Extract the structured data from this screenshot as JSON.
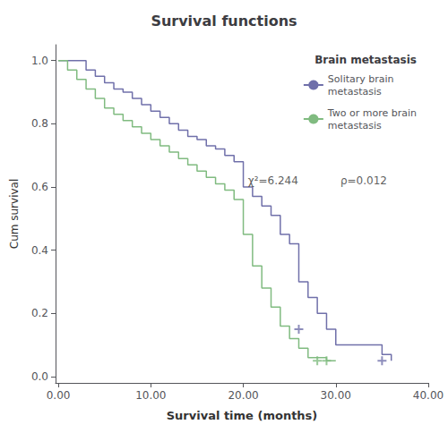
{
  "chart_data": {
    "type": "line",
    "line_style": "step",
    "title": "Survival functions",
    "xlabel": "Survival time (months)",
    "ylabel": "Cum survival",
    "legend_title": "Brain metastasis",
    "legend": "upper right",
    "grid": false,
    "xlim": [
      -0.3,
      40
    ],
    "ylim": [
      -0.02,
      1.05
    ],
    "xticks": [
      {
        "value": 0.0,
        "label": "0.00"
      },
      {
        "value": 10.0,
        "label": "10.00"
      },
      {
        "value": 20.0,
        "label": "20.00"
      },
      {
        "value": 30.0,
        "label": "30.00"
      },
      {
        "value": 40.0,
        "label": "40.00"
      }
    ],
    "yticks": [
      {
        "value": 0.0,
        "label": "0.0"
      },
      {
        "value": 0.2,
        "label": "0.2"
      },
      {
        "value": 0.4,
        "label": "0.4"
      },
      {
        "value": 0.6,
        "label": "0.6"
      },
      {
        "value": 0.8,
        "label": "0.8"
      },
      {
        "value": 1.0,
        "label": "1.0"
      }
    ],
    "series": [
      {
        "name": "Solitary brain\nmetastasis",
        "color": "#7070aa",
        "x": [
          0,
          2,
          3,
          4,
          5,
          6,
          7,
          8,
          9,
          10,
          11,
          12,
          13,
          14,
          15,
          16,
          17,
          18,
          19,
          20,
          21,
          22,
          23,
          24,
          25,
          26,
          27,
          28,
          29,
          30,
          35,
          36
        ],
        "values": [
          1.0,
          1.0,
          0.97,
          0.95,
          0.93,
          0.91,
          0.9,
          0.88,
          0.86,
          0.84,
          0.82,
          0.8,
          0.78,
          0.76,
          0.75,
          0.73,
          0.72,
          0.7,
          0.68,
          0.6,
          0.57,
          0.54,
          0.51,
          0.45,
          0.42,
          0.3,
          0.25,
          0.2,
          0.15,
          0.1,
          0.07,
          0.05
        ]
      },
      {
        "name": "Two or more brain\nmetastasis",
        "color": "#80bb80",
        "x": [
          0,
          1,
          2,
          3,
          4,
          5,
          6,
          7,
          8,
          9,
          10,
          11,
          12,
          13,
          14,
          15,
          16,
          17,
          18,
          19,
          20,
          21,
          22,
          23,
          24,
          25,
          26,
          27,
          28,
          29,
          30
        ],
        "values": [
          1.0,
          0.97,
          0.94,
          0.91,
          0.88,
          0.85,
          0.83,
          0.81,
          0.79,
          0.77,
          0.75,
          0.73,
          0.71,
          0.69,
          0.67,
          0.65,
          0.63,
          0.61,
          0.59,
          0.56,
          0.45,
          0.35,
          0.28,
          0.22,
          0.16,
          0.12,
          0.09,
          0.06,
          0.06,
          0.05,
          0.05
        ]
      },
      {
        "type": "scatter",
        "marker": "+",
        "color": "#7070aa",
        "x": [
          26,
          35
        ],
        "values": [
          0.15,
          0.05
        ]
      },
      {
        "type": "scatter",
        "marker": "+",
        "color": "#80bb80",
        "x": [
          28,
          29
        ],
        "values": [
          0.05,
          0.05
        ]
      }
    ],
    "annotations": [
      {
        "text": "χ²=6.244",
        "x": 20.5,
        "y": 0.62
      },
      {
        "text": "ρ=0.012",
        "x": 30.5,
        "y": 0.62
      }
    ]
  }
}
